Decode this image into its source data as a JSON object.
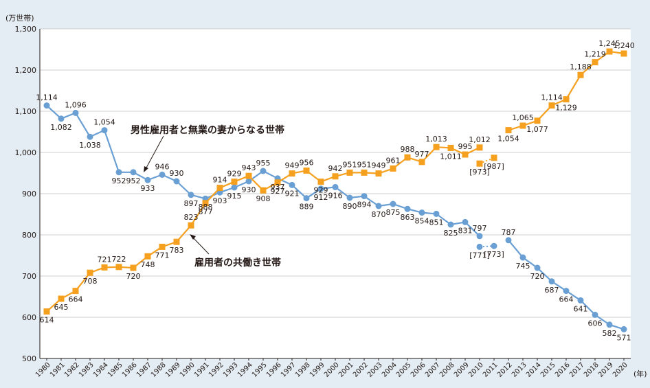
{
  "colors": {
    "background": "#e3edf3",
    "plot_bg": "#ffffff",
    "single_income": "#6a9fd4",
    "dual_income": "#f5a01e",
    "grid": "#c9c9c9"
  },
  "chart_data": {
    "type": "line",
    "ylabel": "(万世帯)",
    "xlabel": "(年)",
    "ylim": [
      500,
      1300
    ],
    "yticks": [
      500,
      600,
      700,
      800,
      900,
      1000,
      1100,
      1200,
      1300
    ],
    "ytick_labels": [
      "500",
      "600",
      "700",
      "800",
      "900",
      "1,000",
      "1,100",
      "1,200",
      "1,300"
    ],
    "grid": "horizontal",
    "x": [
      1980,
      1981,
      1982,
      1983,
      1984,
      1985,
      1986,
      1987,
      1988,
      1989,
      1990,
      1991,
      1992,
      1993,
      1994,
      1995,
      1996,
      1997,
      1998,
      1999,
      2000,
      2001,
      2002,
      2003,
      2004,
      2005,
      2006,
      2007,
      2008,
      2009,
      2010,
      2011,
      2012,
      2013,
      2014,
      2015,
      2016,
      2017,
      2018,
      2019,
      2020
    ],
    "series": [
      {
        "name": "男性雇用者と無業の妻からなる世帯",
        "color": "#6a9fd4",
        "marker": "circle",
        "values": [
          1114,
          1082,
          1096,
          1038,
          1054,
          952,
          952,
          933,
          946,
          930,
          897,
          888,
          903,
          915,
          930,
          955,
          937,
          921,
          889,
          912,
          916,
          890,
          894,
          870,
          875,
          863,
          854,
          851,
          825,
          831,
          797,
          null,
          787,
          745,
          720,
          687,
          664,
          641,
          606,
          582,
          571
        ],
        "labels": [
          "1,114",
          "1,082",
          "1,096",
          "1,038",
          "1,054",
          "952",
          "952",
          "933",
          "946",
          "930",
          "897",
          "888",
          "903",
          "915",
          "930",
          "955",
          "937",
          "921",
          "889",
          "912",
          "916",
          "890",
          "894",
          "870",
          "875",
          "863",
          "854",
          "851",
          "825",
          "831",
          "797",
          "",
          "787",
          "745",
          "720",
          "687",
          "664",
          "641",
          "606",
          "582",
          "571"
        ],
        "reference": {
          "x": [
            2010,
            2011
          ],
          "values": [
            771,
            773
          ],
          "labels": [
            "[771]",
            "[773]"
          ]
        }
      },
      {
        "name": "雇用者の共働き世帯",
        "color": "#f5a01e",
        "marker": "square",
        "values": [
          614,
          645,
          664,
          708,
          721,
          722,
          720,
          748,
          771,
          783,
          823,
          877,
          914,
          929,
          943,
          908,
          927,
          949,
          956,
          929,
          942,
          951,
          951,
          949,
          961,
          988,
          977,
          1013,
          1011,
          995,
          1012,
          null,
          1054,
          1065,
          1077,
          1114,
          1129,
          1188,
          1219,
          1245,
          1240
        ],
        "labels": [
          "614",
          "645",
          "664",
          "708",
          "721",
          "722",
          "720",
          "748",
          "771",
          "783",
          "823",
          "877",
          "914",
          "929",
          "943",
          "908",
          "927",
          "949",
          "956",
          "929",
          "942",
          "951",
          "951",
          "949",
          "961",
          "988",
          "977",
          "1,013",
          "1,011",
          "995",
          "1,012",
          "",
          "1,054",
          "1,065",
          "1,077",
          "1,114",
          "1,129",
          "1,188",
          "1,219",
          "1,245",
          "1,240"
        ],
        "reference": {
          "x": [
            2010,
            2011
          ],
          "values": [
            973,
            987
          ],
          "labels": [
            "[973]",
            "[987]"
          ]
        }
      }
    ]
  }
}
